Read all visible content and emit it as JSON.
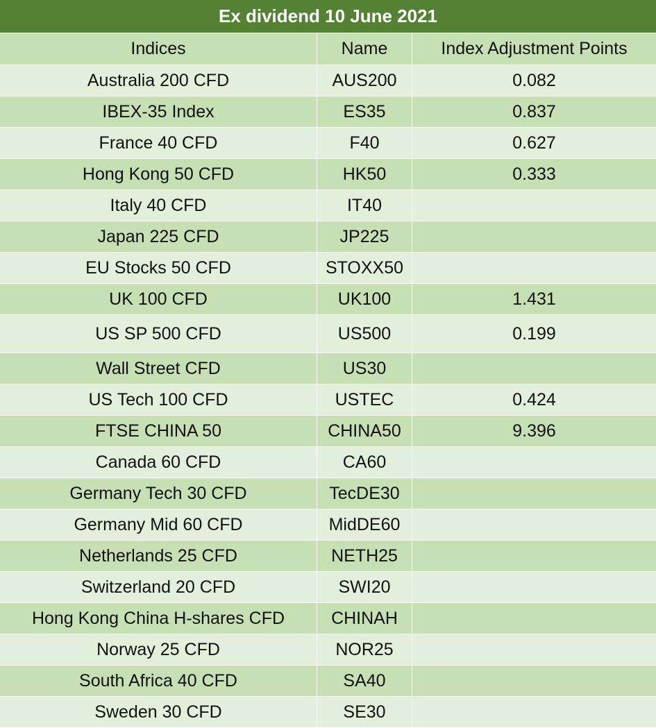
{
  "title": "Ex dividend 10 June 2021",
  "headers": {
    "indices": "Indices",
    "name": "Name",
    "points": "Index Adjustment Points"
  },
  "rows": [
    {
      "index": "Australia 200 CFD",
      "name": "AUS200",
      "points": "0.082"
    },
    {
      "index": "IBEX-35 Index",
      "name": "ES35",
      "points": "0.837"
    },
    {
      "index": "France 40 CFD",
      "name": "F40",
      "points": "0.627"
    },
    {
      "index": "Hong Kong 50 CFD",
      "name": "HK50",
      "points": "0.333"
    },
    {
      "index": "Italy 40 CFD",
      "name": "IT40",
      "points": ""
    },
    {
      "index": "Japan 225 CFD",
      "name": "JP225",
      "points": ""
    },
    {
      "index": "EU Stocks 50 CFD",
      "name": "STOXX50",
      "points": ""
    },
    {
      "index": "UK 100 CFD",
      "name": "UK100",
      "points": "1.431"
    },
    {
      "index": "US SP 500 CFD",
      "name": "US500",
      "points": "0.199"
    },
    {
      "index": "Wall Street CFD",
      "name": "US30",
      "points": ""
    },
    {
      "index": "US Tech 100 CFD",
      "name": "USTEC",
      "points": "0.424"
    },
    {
      "index": "FTSE CHINA 50",
      "name": "CHINA50",
      "points": "9.396"
    },
    {
      "index": "Canada 60 CFD",
      "name": "CA60",
      "points": ""
    },
    {
      "index": "Germany Tech 30 CFD",
      "name": "TecDE30",
      "points": ""
    },
    {
      "index": "Germany Mid 60 CFD",
      "name": "MidDE60",
      "points": ""
    },
    {
      "index": "Netherlands 25 CFD",
      "name": "NETH25",
      "points": ""
    },
    {
      "index": "Switzerland 20 CFD",
      "name": "SWI20",
      "points": ""
    },
    {
      "index": "Hong Kong China H-shares CFD",
      "name": "CHINAH",
      "points": ""
    },
    {
      "index": "Norway 25 CFD",
      "name": "NOR25",
      "points": ""
    },
    {
      "index": "South Africa 40 CFD",
      "name": "SA40",
      "points": ""
    },
    {
      "index": "Sweden 30 CFD",
      "name": "SE30",
      "points": ""
    }
  ]
}
